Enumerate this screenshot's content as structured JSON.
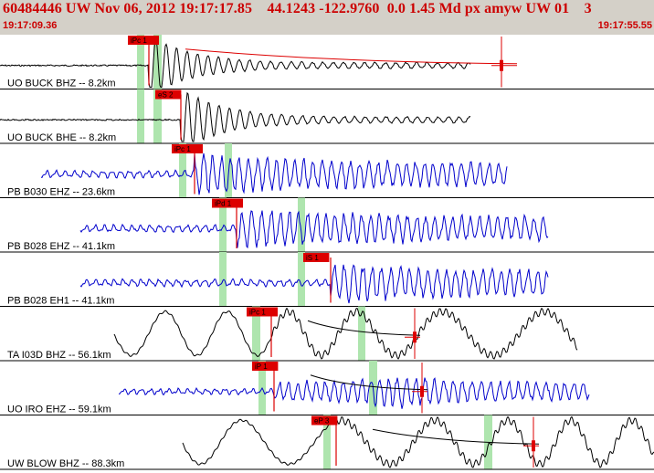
{
  "header": {
    "title": "60484446 UW Nov 06, 2012 19:17:17.85    44.1243 -122.9760  0.0 1.45 Md px amyw UW 01    3",
    "start_time": "19:17:09.36",
    "end_time": "19:17:55.55"
  },
  "colors": {
    "header_bg": "#d4d0c8",
    "header_text": "#cc0000",
    "trace_black": "#000000",
    "trace_blue": "#0000cc",
    "pick": "#dd0000",
    "window": "#aee5ae",
    "fit_line": "#000000"
  },
  "traces": [
    {
      "label": "UO BUCK BHZ -- 8.2km",
      "pick": "iPc 1",
      "color": "black",
      "style": "local"
    },
    {
      "label": "UO BUCK BHE -- 8.2km",
      "pick": "eS 2",
      "color": "black",
      "style": "local"
    },
    {
      "label": "PB B030 EHZ -- 23.6km",
      "pick": "iPc 1",
      "color": "blue",
      "style": "noisy"
    },
    {
      "label": "PB B028 EHZ -- 41.1km",
      "pick": "iPd 1",
      "color": "blue",
      "style": "noisy"
    },
    {
      "label": "PB B028 EH1 -- 41.1km",
      "pick": "iS 1",
      "color": "blue",
      "style": "noisy"
    },
    {
      "label": "TA I03D BHZ -- 56.1km",
      "pick": "iPc 1",
      "color": "black",
      "style": "wave"
    },
    {
      "label": "UO IRO EHZ -- 59.1km",
      "pick": "iP 1",
      "color": "blue",
      "style": "noisyslow"
    },
    {
      "label": "UW BLOW BHZ -- 88.3km",
      "pick": "eP 3",
      "color": "black",
      "style": "wave"
    }
  ]
}
